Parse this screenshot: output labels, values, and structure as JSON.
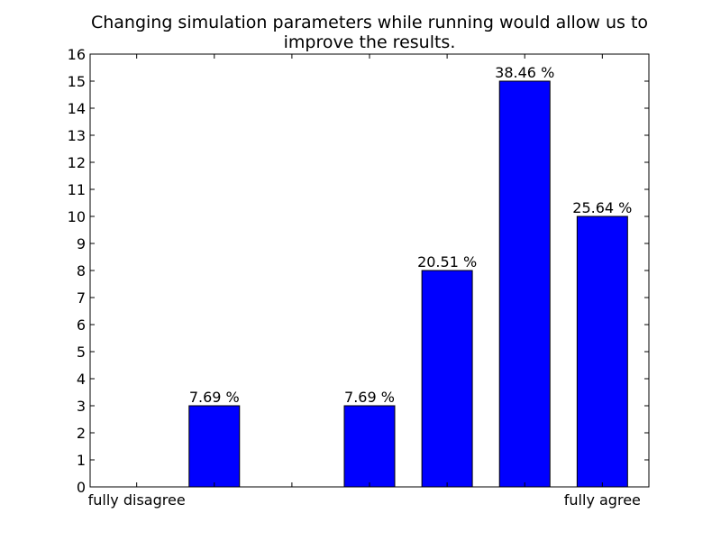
{
  "chart_data": {
    "type": "bar",
    "title_lines": [
      "Changing simulation parameters while running would allow us to",
      "improve the results."
    ],
    "categories": [
      "fully disagree",
      "",
      "",
      "",
      "",
      "",
      "fully agree"
    ],
    "values": [
      0,
      3,
      0,
      3,
      8,
      15,
      10
    ],
    "bar_labels": [
      "",
      "7.69 %",
      "",
      "7.69 %",
      "20.51 %",
      "38.46 %",
      "25.64 %"
    ],
    "xlabel": "",
    "ylabel": "",
    "ylim": [
      0,
      16
    ],
    "yticks": [
      "0",
      "1",
      "2",
      "3",
      "4",
      "5",
      "6",
      "7",
      "8",
      "9",
      "10",
      "11",
      "12",
      "13",
      "14",
      "15",
      "16"
    ],
    "grid": false,
    "bar_color": "#0000ff",
    "edge_color": "#000000"
  }
}
